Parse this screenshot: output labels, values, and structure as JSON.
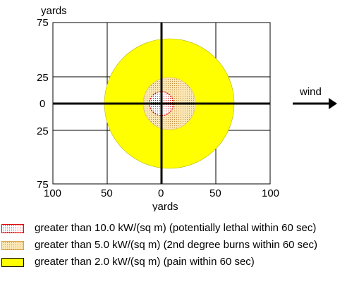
{
  "diagram": {
    "units_label": "yards",
    "y_tick_labels": [
      "75",
      "25",
      "0",
      "25",
      "75"
    ],
    "x_tick_labels": [
      "100",
      "50",
      "0",
      "50",
      "100"
    ],
    "wind_label": "wind",
    "colors": {
      "pain_zone": "#ffff00",
      "burn_zone": "#fbe8b6",
      "burn_zone_dots": "#c28a3c",
      "lethal_zone_outline": "#e00000",
      "axes": "#000000"
    },
    "zones": [
      {
        "id": "lethal",
        "radius_yards": 11,
        "center_x_yards": 0
      },
      {
        "id": "burn",
        "radius_yards": 25,
        "center_x_yards": 5
      },
      {
        "id": "pain",
        "radius_yards": 60,
        "center_x_yards": 5
      }
    ]
  },
  "legend": [
    {
      "id": "lethal",
      "text": "greater than 10.0 kW/(sq m) (potentially lethal within 60 sec)"
    },
    {
      "id": "burn",
      "text": "greater than 5.0 kW/(sq m) (2nd degree burns within 60 sec)"
    },
    {
      "id": "pain",
      "text": "greater than 2.0 kW/(sq m) (pain within 60 sec)"
    }
  ]
}
